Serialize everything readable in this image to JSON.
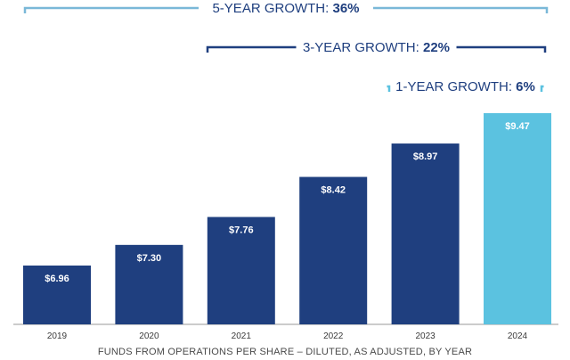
{
  "chart_data": {
    "type": "bar",
    "xlabel": "FUNDS FROM OPERATIONS PER SHARE – DILUTED, AS ADJUSTED, BY YEAR",
    "ylabel": "",
    "categories": [
      "2019",
      "2020",
      "2021",
      "2022",
      "2023",
      "2024"
    ],
    "values": [
      6.96,
      7.3,
      7.76,
      8.42,
      8.97,
      9.47
    ],
    "value_labels": [
      "$6.96",
      "$7.30",
      "$7.76",
      "$8.42",
      "$8.97",
      "$9.47"
    ],
    "bar_colors": [
      "#1f3f7f",
      "#1f3f7f",
      "#1f3f7f",
      "#1f3f7f",
      "#1f3f7f",
      "#5bc2e0"
    ],
    "growth_annotations": [
      {
        "label": "5-YEAR GROWTH:",
        "value": "36%",
        "from": "2019",
        "to": "2024",
        "color": "#1f3f7f",
        "bracket_color": "#7ab8d8"
      },
      {
        "label": "3-YEAR GROWTH:",
        "value": "22%",
        "from": "2021",
        "to": "2024",
        "color": "#1f3f7f",
        "bracket_color": "#1f3f7f"
      },
      {
        "label": "1-YEAR GROWTH:",
        "value": "6%",
        "from": "2023",
        "to": "2024",
        "color": "#1f3f7f",
        "bracket_color": "#5bc2e0"
      }
    ]
  }
}
